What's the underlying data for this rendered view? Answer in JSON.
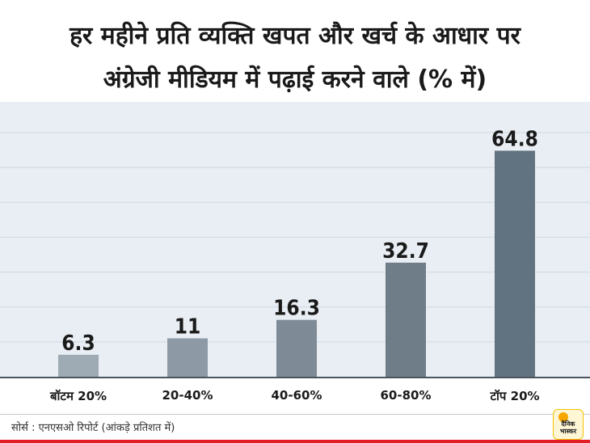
{
  "title_line1": "हर महीने प्रति व्यक्ति खपत और खर्च के आधार पर",
  "title_line2": "अंग्रेजी मीडियम में पढ़ाई करने वाले (% में)",
  "source": "सोर्स : एनएसओ रिपोर्ट  (आंकड़े प्रतिशत में)",
  "logo": {
    "line1": "दैनिक",
    "line2": "भास्कर"
  },
  "colors": {
    "plot_bg": "#e9eef4",
    "gridline": "#cfd8e2",
    "bar_shades": [
      "#9eaab4",
      "#8d9aa5",
      "#7e8b97",
      "#6f7d89",
      "#617280"
    ],
    "accent_red": "#e31e24"
  },
  "chart_data": {
    "type": "bar",
    "categories": [
      "बॉटम 20%",
      "20-40%",
      "40-60%",
      "60-80%",
      "टॉप 20%"
    ],
    "values": [
      6.3,
      11,
      16.3,
      32.7,
      64.8
    ],
    "value_labels": [
      "6.3",
      "11",
      "16.3",
      "32.7",
      "64.8"
    ],
    "title": "हर महीने प्रति व्यक्ति खपत और खर्च के आधार पर अंग्रेजी मीडियम में पढ़ाई करने वाले (% में)",
    "xlabel": "",
    "ylabel": "",
    "ylim": [
      0,
      70
    ],
    "grid": true
  }
}
